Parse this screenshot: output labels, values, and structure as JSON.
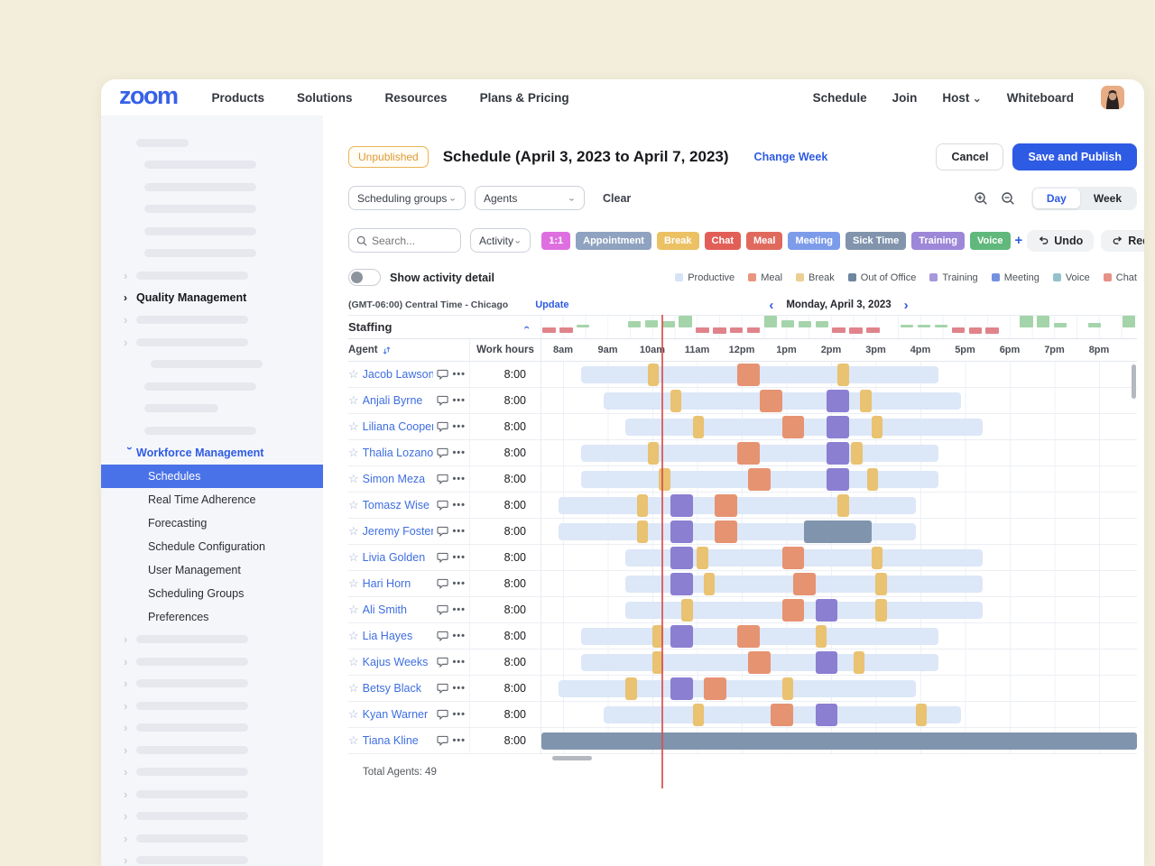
{
  "nav": {
    "brand": "zoom",
    "left_items": [
      "Products",
      "Solutions",
      "Resources",
      "Plans & Pricing"
    ],
    "right_items": [
      "Schedule",
      "Join",
      "Host",
      "Whiteboard"
    ]
  },
  "sidebar": {
    "quality_management": "Quality Management",
    "workforce_management": "Workforce Management",
    "items": [
      "Schedules",
      "Real Time Adherence",
      "Forecasting",
      "Schedule Configuration",
      "User Management",
      "Scheduling Groups",
      "Preferences"
    ],
    "selected_item": "Schedules"
  },
  "header": {
    "status_badge": "Unpublished",
    "title": "Schedule (April 3, 2023 to April 7, 2023)",
    "change_week": "Change Week",
    "cancel": "Cancel",
    "save": "Save and Publish"
  },
  "filters": {
    "scheduling_groups": "Scheduling groups",
    "agents": "Agents",
    "clear": "Clear",
    "day": "Day",
    "week": "Week",
    "search_placeholder": "Search...",
    "activity": "Activity",
    "add_chip": "+",
    "undo": "Undo",
    "redo": "Redo",
    "chips": [
      {
        "label": "1:1",
        "color": "#de6fe0"
      },
      {
        "label": "Appointment",
        "color": "#8fa3c0"
      },
      {
        "label": "Break",
        "color": "#ecc164"
      },
      {
        "label": "Chat",
        "color": "#e25f58"
      },
      {
        "label": "Meal",
        "color": "#e0695e"
      },
      {
        "label": "Meeting",
        "color": "#7c9cea"
      },
      {
        "label": "Sick Time",
        "color": "#8194ac"
      },
      {
        "label": "Training",
        "color": "#9d87d8"
      },
      {
        "label": "Voice",
        "color": "#60b87c"
      }
    ]
  },
  "toggle": {
    "label": "Show activity detail",
    "state": "off"
  },
  "legend": [
    {
      "label": "Productive",
      "color": "#d7e3f6"
    },
    {
      "label": "Meal",
      "color": "#e89680"
    },
    {
      "label": "Break",
      "color": "#ecce90"
    },
    {
      "label": "Out of Office",
      "color": "#6e86a0"
    },
    {
      "label": "Training",
      "color": "#a797dc"
    },
    {
      "label": "Meeting",
      "color": "#7491e0"
    },
    {
      "label": "Voice",
      "color": "#93c2cc"
    },
    {
      "label": "Chat",
      "color": "#e69086"
    }
  ],
  "schedule": {
    "timezone": "(GMT-06:00) Central Time - Chicago",
    "update": "Update",
    "date": "Monday, April 3, 2023",
    "staffing_label": "Staffing",
    "agent_col": "Agent",
    "hours_col": "Work hours",
    "time_labels": [
      "8am",
      "9am",
      "10am",
      "11am",
      "12pm",
      "1pm",
      "2pm",
      "3pm",
      "4pm",
      "5pm",
      "6pm",
      "7pm",
      "8pm"
    ],
    "current_time_hours_from_8am": 2.42,
    "total_agents": "Total Agents: 49",
    "activity_colors": {
      "productive": "#dce7f7",
      "break": "#e9c272",
      "meal": "#e69372",
      "training": "#8b7fd2",
      "out_of_office": "#8095ad"
    },
    "staffing_values": [
      -1,
      -1,
      0.5,
      0,
      0,
      1,
      1.3,
      1,
      2,
      -1,
      -1.3,
      -1,
      -1,
      2,
      1.3,
      1,
      1,
      -1,
      -1.3,
      -1,
      0,
      0.5,
      0.5,
      0.5,
      -1,
      -1.3,
      -1.3,
      0,
      2,
      2,
      0.7,
      0,
      0.7,
      0,
      2
    ],
    "agents": [
      {
        "name": "Jacob Lawson",
        "hours": "8:00",
        "shift": [
          0.5,
          8.5
        ],
        "blocks": [
          [
            "break",
            2.0,
            0.25
          ],
          [
            "meal",
            4.0,
            0.5
          ],
          [
            "break",
            6.25,
            0.25
          ]
        ]
      },
      {
        "name": "Anjali Byrne",
        "hours": "8:00",
        "shift": [
          1.0,
          9.0
        ],
        "blocks": [
          [
            "break",
            2.5,
            0.25
          ],
          [
            "meal",
            4.5,
            0.5
          ],
          [
            "training",
            6.0,
            0.5
          ],
          [
            "break",
            6.75,
            0.25
          ]
        ]
      },
      {
        "name": "Liliana Cooper",
        "hours": "8:00",
        "shift": [
          1.5,
          9.5
        ],
        "blocks": [
          [
            "break",
            3.0,
            0.25
          ],
          [
            "meal",
            5.0,
            0.5
          ],
          [
            "training",
            6.0,
            0.5
          ],
          [
            "break",
            7.0,
            0.25
          ]
        ]
      },
      {
        "name": "Thalia Lozano",
        "hours": "8:00",
        "shift": [
          0.5,
          8.5
        ],
        "blocks": [
          [
            "break",
            2.0,
            0.25
          ],
          [
            "meal",
            4.0,
            0.5
          ],
          [
            "training",
            6.0,
            0.5
          ],
          [
            "break",
            6.55,
            0.25
          ]
        ]
      },
      {
        "name": "Simon Meza",
        "hours": "8:00",
        "shift": [
          0.5,
          8.5
        ],
        "blocks": [
          [
            "break",
            2.25,
            0.25
          ],
          [
            "meal",
            4.25,
            0.5
          ],
          [
            "training",
            6.0,
            0.5
          ],
          [
            "break",
            6.9,
            0.25
          ]
        ]
      },
      {
        "name": "Tomasz Wise",
        "hours": "8:00",
        "shift": [
          0.0,
          8.0
        ],
        "blocks": [
          [
            "break",
            1.75,
            0.25
          ],
          [
            "training",
            2.5,
            0.5
          ],
          [
            "meal",
            3.5,
            0.5
          ],
          [
            "break",
            6.25,
            0.25
          ]
        ]
      },
      {
        "name": "Jeremy Foster",
        "hours": "8:00",
        "shift": [
          0.0,
          8.0
        ],
        "blocks": [
          [
            "break",
            1.75,
            0.25
          ],
          [
            "training",
            2.5,
            0.5
          ],
          [
            "meal",
            3.5,
            0.5
          ],
          [
            "out_of_office",
            5.5,
            1.5
          ]
        ]
      },
      {
        "name": "Livia Golden",
        "hours": "8:00",
        "shift": [
          1.5,
          9.5
        ],
        "blocks": [
          [
            "training",
            2.5,
            0.5
          ],
          [
            "break",
            3.1,
            0.25
          ],
          [
            "meal",
            5.0,
            0.5
          ],
          [
            "break",
            7.0,
            0.25
          ]
        ]
      },
      {
        "name": "Hari Horn",
        "hours": "8:00",
        "shift": [
          1.5,
          9.5
        ],
        "blocks": [
          [
            "training",
            2.5,
            0.5
          ],
          [
            "break",
            3.25,
            0.25
          ],
          [
            "meal",
            5.25,
            0.5
          ],
          [
            "break",
            7.1,
            0.25
          ]
        ]
      },
      {
        "name": "Ali Smith",
        "hours": "8:00",
        "shift": [
          1.5,
          9.5
        ],
        "blocks": [
          [
            "break",
            2.75,
            0.25
          ],
          [
            "meal",
            5.0,
            0.5
          ],
          [
            "training",
            5.75,
            0.5
          ],
          [
            "break",
            7.1,
            0.25
          ]
        ]
      },
      {
        "name": "Lia Hayes",
        "hours": "8:00",
        "shift": [
          0.5,
          8.5
        ],
        "blocks": [
          [
            "break",
            2.1,
            0.25
          ],
          [
            "training",
            2.5,
            0.5
          ],
          [
            "meal",
            4.0,
            0.5
          ],
          [
            "break",
            5.75,
            0.25
          ]
        ]
      },
      {
        "name": "Kajus Weeks",
        "hours": "8:00",
        "shift": [
          0.5,
          8.5
        ],
        "blocks": [
          [
            "break",
            2.1,
            0.25
          ],
          [
            "meal",
            4.25,
            0.5
          ],
          [
            "training",
            5.75,
            0.5
          ],
          [
            "break",
            6.6,
            0.25
          ]
        ]
      },
      {
        "name": "Betsy Black",
        "hours": "8:00",
        "shift": [
          0.0,
          8.0
        ],
        "blocks": [
          [
            "break",
            1.5,
            0.25
          ],
          [
            "training",
            2.5,
            0.5
          ],
          [
            "meal",
            3.25,
            0.5
          ],
          [
            "break",
            5.0,
            0.25
          ]
        ]
      },
      {
        "name": "Kyan Warner",
        "hours": "8:00",
        "shift": [
          1.0,
          9.0
        ],
        "blocks": [
          [
            "break",
            3.0,
            0.25
          ],
          [
            "meal",
            4.75,
            0.5
          ],
          [
            "training",
            5.75,
            0.5
          ],
          [
            "break",
            8.0,
            0.25
          ]
        ]
      },
      {
        "name": "Tiana Kline",
        "hours": "8:00",
        "shift": null,
        "full_out_of_office": true,
        "blocks": []
      }
    ]
  }
}
